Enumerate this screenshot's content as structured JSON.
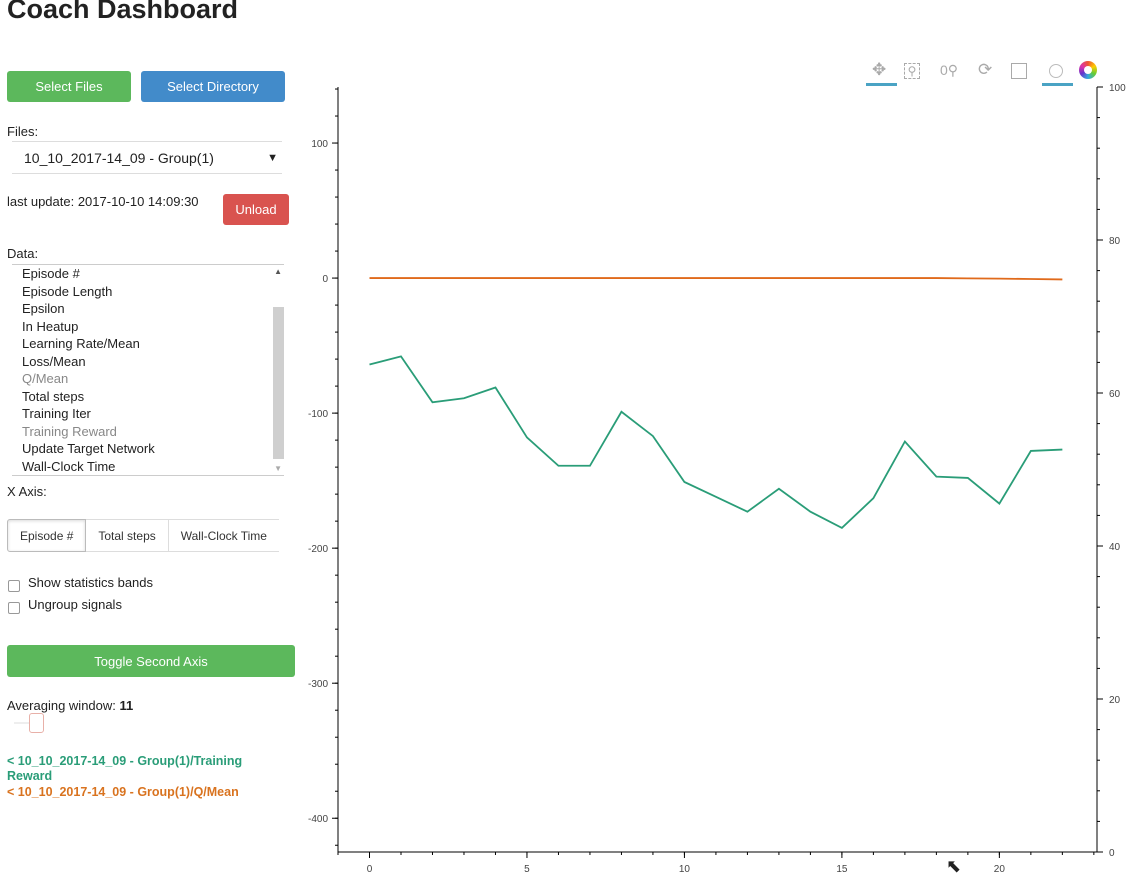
{
  "title": "Coach Dashboard",
  "buttons": {
    "select_files": "Select Files",
    "select_directory": "Select Directory",
    "unload": "Unload",
    "toggle_second_axis": "Toggle Second Axis"
  },
  "files": {
    "label": "Files:",
    "selected": "10_10_2017-14_09 - Group(1)"
  },
  "last_update": "last update: 2017-10-10 14:09:30",
  "data_list": {
    "label": "Data:",
    "items": [
      "Episode #",
      "Episode Length",
      "Epsilon",
      "In Heatup",
      "Learning Rate/Mean",
      "Loss/Mean",
      "Q/Mean",
      "Total steps",
      "Training Iter",
      "Training Reward",
      "Update Target Network",
      "Wall-Clock Time"
    ],
    "selected": [
      "Q/Mean",
      "Training Reward"
    ]
  },
  "x_axis": {
    "label": "X Axis:",
    "options": [
      "Episode #",
      "Total steps",
      "Wall-Clock Time"
    ],
    "selected": "Episode #"
  },
  "checkboxes": [
    {
      "label": "Show statistics bands",
      "checked": false
    },
    {
      "label": "Ungroup signals",
      "checked": false
    }
  ],
  "averaging": {
    "label": "Averaging window:",
    "value": "11"
  },
  "legend": [
    {
      "label": "< 10_10_2017-14_09 - Group(1)/Training Reward",
      "color": "#2ca02c"
    },
    {
      "label": "< 10_10_2017-14_09 - Group(1)/Q/Mean",
      "color": "#e07020"
    }
  ],
  "toolbar": [
    "pan-icon",
    "box-zoom-icon",
    "wheel-zoom-icon",
    "reset-icon",
    "save-icon",
    "hover-icon",
    "bokeh-logo-icon"
  ],
  "colors": {
    "green_btn": "#5cb85c",
    "blue_btn": "#428bca",
    "red_btn": "#d9534f",
    "reward_line": "#2a9d78",
    "q_line": "#e06a1b"
  },
  "chart_data": {
    "type": "line",
    "x": [
      0,
      1,
      2,
      3,
      4,
      5,
      6,
      7,
      8,
      9,
      10,
      11,
      12,
      13,
      14,
      15,
      16,
      17,
      18,
      19,
      20,
      21,
      22
    ],
    "series": [
      {
        "name": "Training Reward",
        "values": [
          -64,
          -58,
          -92,
          -89,
          -81,
          -118,
          -139,
          -139,
          -99,
          -117,
          -151,
          -162,
          -173,
          -156,
          -173,
          -185,
          -163,
          -121,
          -147,
          -148,
          -167,
          -128,
          -127
        ]
      },
      {
        "name": "Q/Mean",
        "values": [
          0,
          0,
          0,
          0,
          0,
          0,
          0,
          0,
          0,
          0,
          0,
          0,
          0,
          0,
          0,
          0,
          0,
          0,
          0,
          -0.2,
          -0.4,
          -0.7,
          -1
        ]
      }
    ],
    "xlim": [
      -1,
      23.1
    ],
    "ylim": [
      -425,
      141.5
    ],
    "y2lim": [
      0,
      100
    ],
    "xticks": [
      "0",
      "5",
      "10",
      "15",
      "20"
    ],
    "yticks": [
      "100",
      "0",
      "-100",
      "-200",
      "-300",
      "-400"
    ],
    "y2ticks": [
      "0",
      "20",
      "40",
      "60",
      "80",
      "100"
    ],
    "grid": false
  }
}
